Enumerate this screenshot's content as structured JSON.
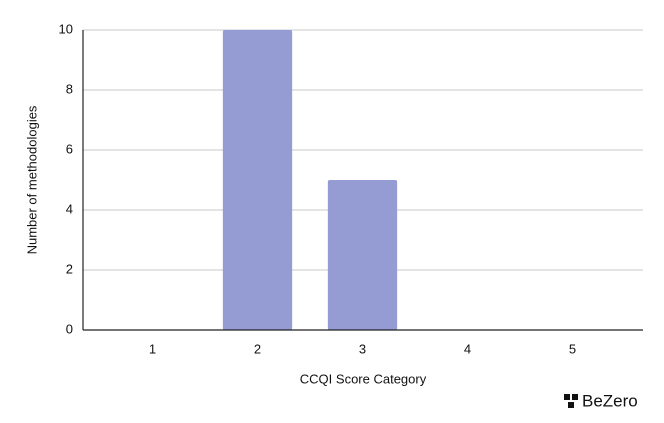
{
  "chart_data": {
    "type": "bar",
    "x_label": "CCQI Score Category",
    "y_label": "Number of methodologies",
    "categories": [
      "1",
      "2",
      "3",
      "4",
      "5"
    ],
    "values": [
      0,
      10,
      5,
      0,
      0
    ],
    "color": "#959bd3",
    "ylim": [
      0,
      10
    ],
    "yticks": [
      0,
      2,
      4,
      6,
      8,
      10
    ],
    "grid": true,
    "logo": "BeZero"
  }
}
